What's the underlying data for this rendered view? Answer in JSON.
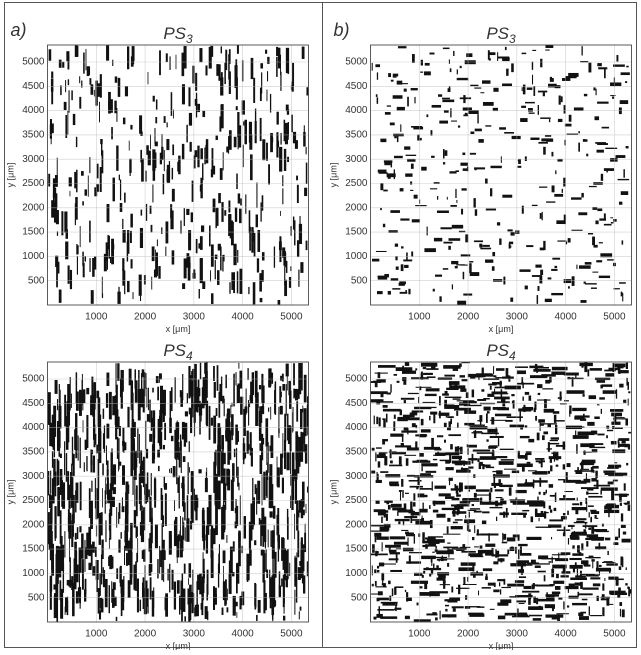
{
  "figure": {
    "panels": [
      {
        "label": "a)",
        "plots": [
          {
            "title": "PS",
            "title_sub": "3",
            "xlabel": "x [μm]",
            "ylabel": "y [μm]",
            "xlim": [
              0,
              5350
            ],
            "ylim": [
              0,
              5350
            ],
            "xticks": [
              1000,
              2000,
              3000,
              4000,
              5000
            ],
            "yticks": [
              500,
              1000,
              1500,
              2000,
              2500,
              3000,
              3500,
              4000,
              4500,
              5000
            ]
          },
          {
            "title": "PS",
            "title_sub": "4",
            "xlabel": "x [μm]",
            "ylabel": "y [μm]",
            "xlim": [
              0,
              5350
            ],
            "ylim": [
              0,
              5350
            ],
            "xticks": [
              1000,
              2000,
              3000,
              4000,
              5000
            ],
            "yticks": [
              500,
              1000,
              1500,
              2000,
              2500,
              3000,
              3500,
              4000,
              4500,
              5000
            ]
          }
        ]
      },
      {
        "label": "b)",
        "plots": [
          {
            "title": "PS",
            "title_sub": "3",
            "xlabel": "x [μm]",
            "ylabel": "y [μm]",
            "xlim": [
              0,
              5350
            ],
            "ylim": [
              0,
              5350
            ],
            "xticks": [
              1000,
              2000,
              3000,
              4000,
              5000
            ],
            "yticks": [
              500,
              1000,
              1500,
              2000,
              2500,
              3000,
              3500,
              4000,
              4500,
              5000
            ]
          },
          {
            "title": "PS",
            "title_sub": "4",
            "xlabel": "x [μm]",
            "ylabel": "y [μm]",
            "xlim": [
              0,
              5350
            ],
            "ylim": [
              0,
              5350
            ],
            "xticks": [
              1000,
              2000,
              3000,
              4000,
              5000
            ],
            "yticks": [
              500,
              1000,
              1500,
              2000,
              2500,
              3000,
              3500,
              4000,
              4500,
              5000
            ]
          }
        ]
      }
    ]
  }
}
